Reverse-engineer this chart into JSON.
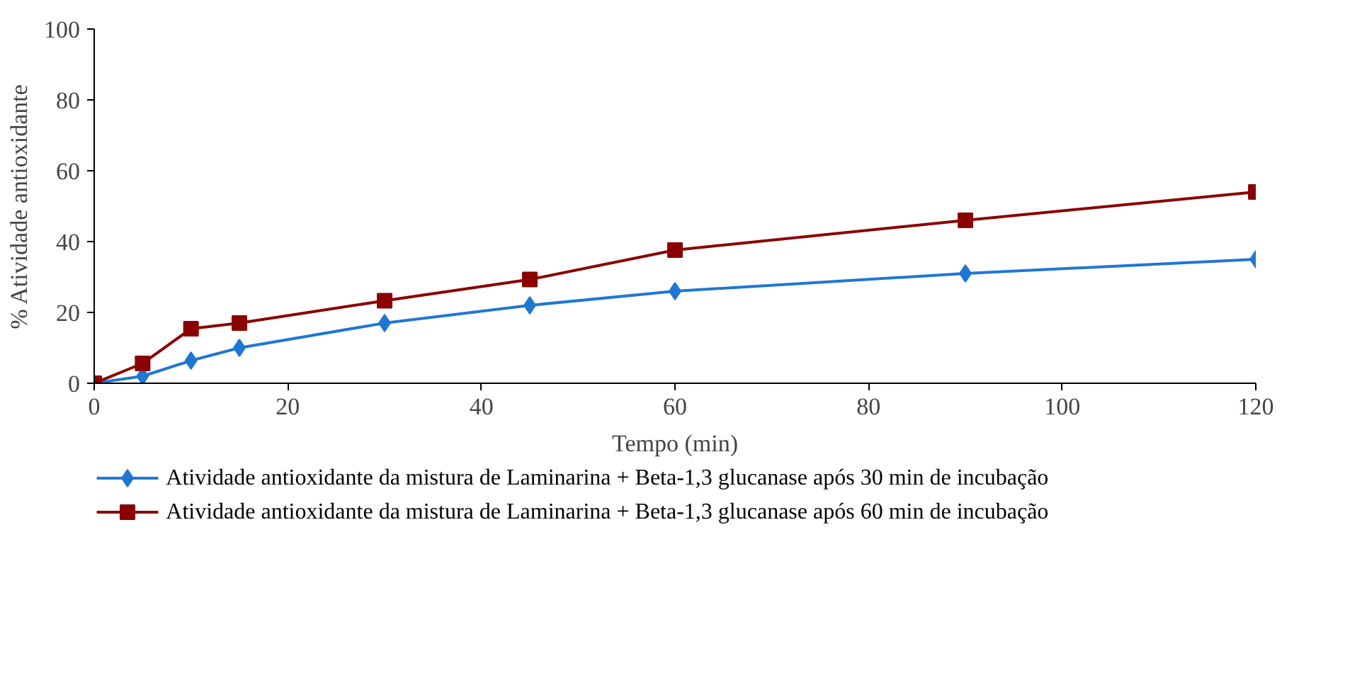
{
  "chart_data": {
    "type": "line",
    "xlabel": "Tempo (min)",
    "ylabel": "% Atividade antioxidante",
    "x": [
      0,
      5,
      10,
      15,
      30,
      45,
      60,
      90,
      120
    ],
    "series": [
      {
        "name": "Atividade antioxidante da mistura de Laminarina + Beta-1,3 glucanase após 30 min de incubação",
        "color": "#1f77d4",
        "marker": "diamond",
        "values": [
          0,
          2,
          6.4,
          10,
          17,
          22,
          26,
          31,
          35
        ]
      },
      {
        "name": "Atividade antioxidante da mistura de Laminarina + Beta-1,3 glucanase após 60 min de incubação",
        "color": "#8b0000",
        "marker": "square",
        "values": [
          0,
          5.6,
          15.4,
          17,
          23.3,
          29.3,
          37.6,
          46,
          54
        ]
      }
    ],
    "xlim": [
      0,
      120
    ],
    "xticks": [
      0,
      20,
      40,
      60,
      80,
      100,
      120
    ],
    "ylim": [
      0,
      100
    ],
    "yticks": [
      0,
      20,
      40,
      60,
      80,
      100
    ],
    "grid": false,
    "legend": "bottom"
  }
}
